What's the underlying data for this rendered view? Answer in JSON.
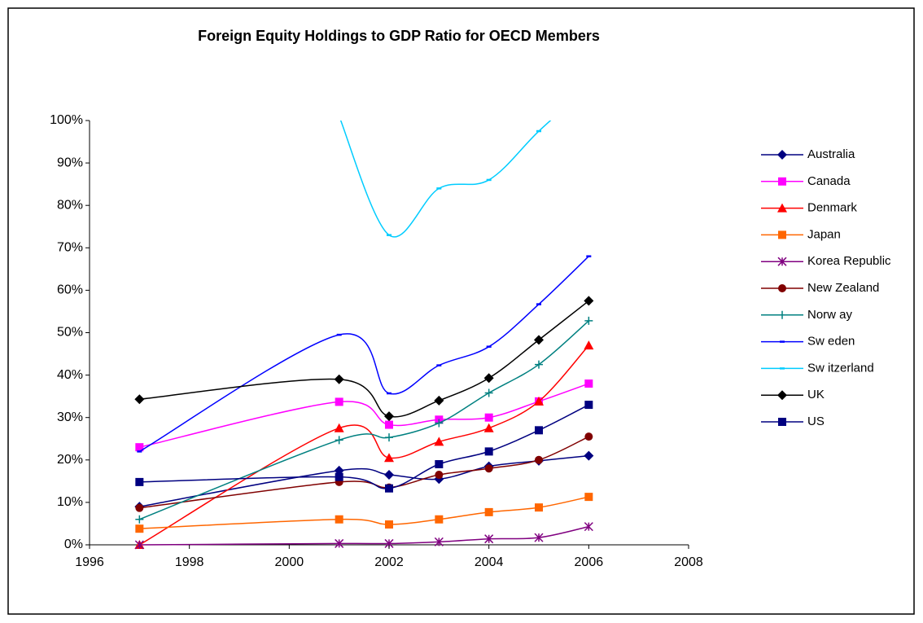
{
  "chart_data": {
    "type": "line",
    "title": "Foreign Equity  Holdings to GDP Ratio for OECD Members",
    "x": [
      1997,
      2001,
      2002,
      2003,
      2004,
      2005,
      2006
    ],
    "xlim": [
      1996,
      2008
    ],
    "xticks": [
      1996,
      1998,
      2000,
      2002,
      2004,
      2006,
      2008
    ],
    "ylim": [
      0,
      100
    ],
    "yticks": [
      {
        "value": 0,
        "label": "0%"
      },
      {
        "value": 10,
        "label": "10%"
      },
      {
        "value": 20,
        "label": "20%"
      },
      {
        "value": 30,
        "label": "30%"
      },
      {
        "value": 40,
        "label": "40%"
      },
      {
        "value": 50,
        "label": "50%"
      },
      {
        "value": 60,
        "label": "60%"
      },
      {
        "value": 70,
        "label": "70%"
      },
      {
        "value": 80,
        "label": "80%"
      },
      {
        "value": 90,
        "label": "90%"
      },
      {
        "value": 100,
        "label": "100%"
      }
    ],
    "grid": false,
    "legend": "right",
    "smooth": true,
    "series": [
      {
        "name": "Australia",
        "color": "#000080",
        "marker": "diamond",
        "values": [
          9,
          17.5,
          16.5,
          15.5,
          18.5,
          19.8,
          21
        ]
      },
      {
        "name": "Canada",
        "color": "#ff00ff",
        "marker": "square",
        "values": [
          23,
          33.7,
          28.3,
          29.5,
          30,
          33.8,
          38
        ]
      },
      {
        "name": "Denmark",
        "color": "#ff0000",
        "marker": "triangle",
        "values": [
          0,
          27.5,
          20.5,
          24.3,
          27.5,
          33.8,
          47
        ]
      },
      {
        "name": "Japan",
        "color": "#ff6600",
        "marker": "square",
        "values": [
          3.8,
          6,
          4.8,
          6,
          7.7,
          8.8,
          11.3
        ]
      },
      {
        "name": "Korea Republic",
        "color": "#800080",
        "marker": "asterisk",
        "values": [
          0,
          0.3,
          0.3,
          0.7,
          1.4,
          1.7,
          4.3
        ]
      },
      {
        "name": "New  Zealand",
        "color": "#800000",
        "marker": "circle",
        "values": [
          8.7,
          14.8,
          13.5,
          16.5,
          18,
          20,
          25.5
        ]
      },
      {
        "name": "Norw ay",
        "color": "#008080",
        "marker": "plus",
        "values": [
          6,
          24.7,
          25.3,
          28.7,
          35.8,
          42.5,
          52.8
        ]
      },
      {
        "name": "Sw eden",
        "color": "#0000ff",
        "marker": "dash",
        "values": [
          22,
          49.5,
          35.7,
          42.3,
          46.7,
          56.7,
          68
        ]
      },
      {
        "name": "Sw itzerland",
        "color": "#00ccff",
        "marker": "dash",
        "values": [
          null,
          101,
          73,
          84,
          86,
          97.5,
          108
        ]
      },
      {
        "name": "UK",
        "color": "#000000",
        "marker": "diamond",
        "values": [
          34.3,
          39,
          30.3,
          34,
          39.3,
          48.3,
          57.5
        ]
      },
      {
        "name": "US",
        "color": "#000080",
        "marker": "square",
        "values": [
          14.8,
          16,
          13.3,
          19,
          22,
          27,
          33
        ]
      }
    ]
  }
}
